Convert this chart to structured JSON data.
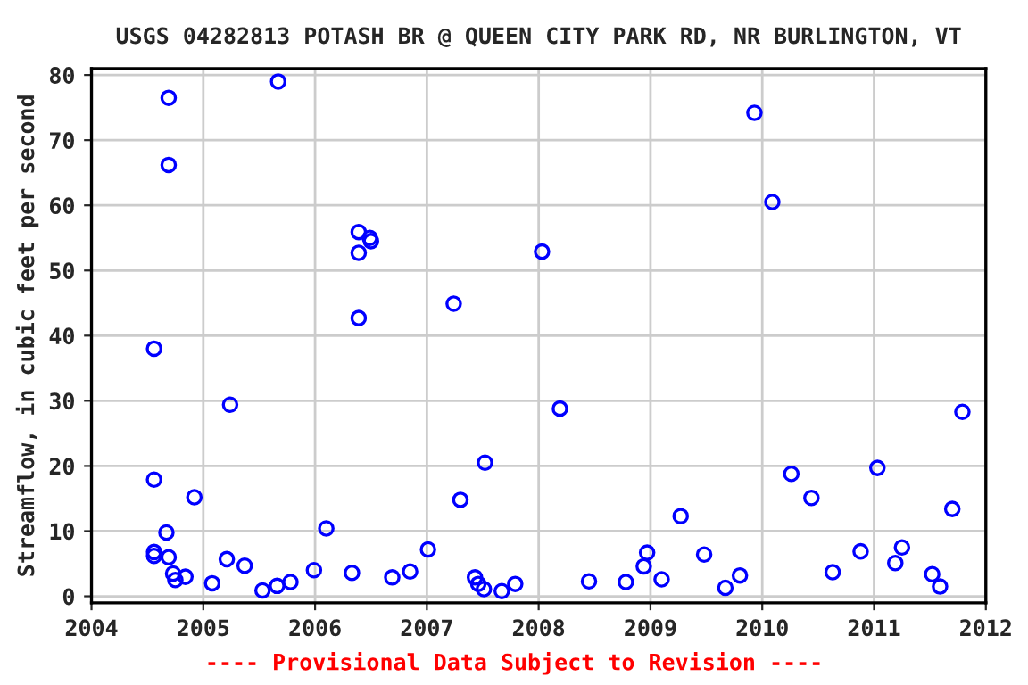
{
  "chart_data": {
    "type": "scatter",
    "title": "USGS 04282813 POTASH BR @ QUEEN CITY PARK RD, NR BURLINGTON, VT",
    "ylabel": "Streamflow, in cubic feet per second",
    "annotations": [
      "---- Provisional Data Subject to Revision ----"
    ],
    "xlim": [
      2004,
      2012
    ],
    "xticks": [
      2004,
      2005,
      2006,
      2007,
      2008,
      2009,
      2010,
      2011,
      2012
    ],
    "ylim": [
      -1,
      81
    ],
    "yticks": [
      0,
      10,
      20,
      30,
      40,
      50,
      60,
      70,
      80
    ],
    "grid": true,
    "marker": "circle",
    "series": [
      {
        "color": "#0000ff",
        "x": [
          2004.56,
          2004.56,
          2004.56,
          2004.56,
          2004.69,
          2004.69,
          2004.67,
          2004.69,
          2004.73,
          2004.75,
          2004.84,
          2004.92,
          2005.08,
          2005.24,
          2005.21,
          2005.37,
          2005.53,
          2005.66,
          2005.78,
          2005.67,
          2005.99,
          2006.1,
          2006.33,
          2006.39,
          2006.39,
          2006.39,
          2006.49,
          2006.5,
          2006.69,
          2006.85,
          2007.01,
          2007.24,
          2007.3,
          2007.43,
          2007.46,
          2007.51,
          2007.52,
          2007.67,
          2007.79,
          2008.03,
          2008.19,
          2008.45,
          2008.78,
          2008.94,
          2008.97,
          2009.1,
          2009.27,
          2009.48,
          2009.67,
          2009.8,
          2009.93,
          2010.09,
          2010.26,
          2010.44,
          2010.63,
          2010.88,
          2011.03,
          2011.19,
          2011.25,
          2011.52,
          2011.59,
          2011.7,
          2011.79
        ],
        "values": [
          38,
          17.9,
          6.8,
          6.2,
          76.5,
          66.2,
          9.8,
          6,
          3.5,
          2.5,
          3,
          15.2,
          2,
          29.4,
          5.7,
          4.7,
          0.9,
          1.6,
          2.2,
          79,
          4,
          10.4,
          3.6,
          55.9,
          52.7,
          42.7,
          55,
          54.5,
          2.9,
          3.8,
          7.2,
          44.9,
          14.8,
          2.9,
          1.9,
          1.1,
          20.5,
          0.8,
          1.9,
          52.9,
          28.8,
          2.3,
          2.2,
          4.6,
          6.7,
          2.6,
          12.3,
          6.4,
          1.3,
          3.2,
          74.2,
          60.5,
          18.8,
          15.1,
          3.7,
          6.9,
          19.7,
          5.1,
          7.5,
          3.4,
          1.5,
          13.4,
          28.3
        ]
      }
    ]
  }
}
